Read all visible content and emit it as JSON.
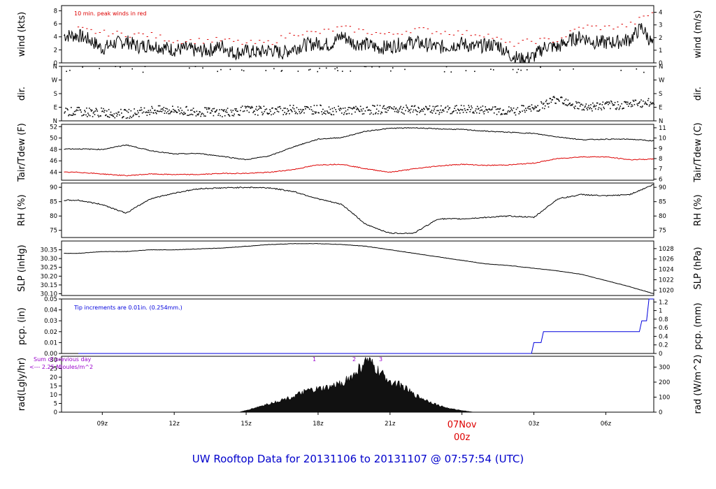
{
  "footer_title": "UW Rooftop Data for 20131106  to  20131107 @ 07:57:54  (UTC)",
  "colors": {
    "red": "#dd0000",
    "blue": "#0000dd",
    "purple": "#9900cc",
    "black": "#000000"
  },
  "chart_data": [
    {
      "type": "line",
      "panel": "wind",
      "left_label": "wind (kts)",
      "right_label": "wind (m/s)",
      "annotation": "10 min. peak winds in red",
      "ylim": [
        0,
        8.8
      ],
      "left_ticks": [
        "0",
        "2",
        "4",
        "6",
        "8"
      ],
      "right_ticks": [
        "0",
        "1",
        "2",
        "3",
        "4"
      ],
      "series": [
        {
          "name": "wind (kts)",
          "color": "#000000",
          "x": [
            8,
            8.5,
            9,
            9.5,
            10,
            10.5,
            11,
            11.5,
            12,
            12.5,
            13,
            13.5,
            14,
            14.5,
            15,
            15.5,
            16,
            16.5,
            17,
            17.5,
            18,
            18.5,
            19,
            19.5,
            20,
            20.5,
            21,
            21.5,
            22,
            22.5,
            23,
            23.5,
            24,
            24.5,
            25,
            25.5,
            26,
            26.5,
            27,
            27.5,
            28,
            28.5,
            29,
            29.5,
            30,
            30.5,
            31,
            31.5,
            32
          ],
          "values": [
            4.2,
            3.5,
            2.2,
            3.0,
            3.3,
            2.5,
            2.8,
            2.4,
            2.0,
            2.2,
            1.8,
            2.0,
            2.6,
            1.5,
            1.8,
            1.6,
            2.0,
            1.5,
            2.3,
            2.8,
            3.0,
            2.8,
            4.2,
            3.0,
            2.9,
            2.3,
            2.5,
            2.9,
            3.2,
            2.8,
            2.4,
            2.6,
            3.0,
            2.4,
            2.7,
            2.8,
            1.2,
            0.5,
            1.0,
            2.6,
            2.4,
            3.5,
            4.0,
            3.2,
            3.1,
            3.2,
            3.6,
            5.5,
            2.5
          ]
        },
        {
          "name": "10 min. peak winds",
          "color": "#dd0000",
          "x": [
            8,
            9,
            10,
            11,
            12,
            13,
            14,
            15,
            16,
            17,
            18,
            19,
            20,
            21,
            22,
            23,
            24,
            25,
            26,
            27,
            28,
            29,
            30,
            31,
            32
          ],
          "values": [
            5.2,
            4.6,
            4.4,
            4.3,
            3.4,
            3.4,
            3.5,
            3.0,
            3.1,
            4.6,
            4.6,
            5.4,
            4.8,
            4.3,
            5.2,
            4.8,
            4.6,
            4.4,
            2.8,
            3.4,
            3.5,
            5.6,
            5.4,
            5.8,
            7.8
          ]
        }
      ]
    },
    {
      "type": "scatter",
      "panel": "dir",
      "left_label": "dir.",
      "right_label": "dir.",
      "ylim": [
        0,
        360
      ],
      "left_ticks": [
        "N",
        "E",
        "S",
        "W",
        "N"
      ],
      "right_ticks": [
        "N",
        "E",
        "S",
        "W",
        "N"
      ],
      "series": [
        {
          "name": "dir",
          "x": [
            8,
            9,
            10,
            11,
            12,
            13,
            14,
            15,
            16,
            17,
            18,
            19,
            20,
            21,
            22,
            23,
            24,
            25,
            26,
            27,
            28,
            29,
            30,
            31,
            32
          ],
          "values": [
            60,
            55,
            45,
            70,
            70,
            60,
            55,
            70,
            65,
            75,
            75,
            65,
            70,
            80,
            70,
            70,
            75,
            70,
            65,
            80,
            150,
            90,
            100,
            110,
            120
          ]
        }
      ]
    },
    {
      "type": "line",
      "panel": "temp",
      "left_label": "Tair/Tdew (F)",
      "right_label": "Tair/Tdew (C)",
      "ylim": [
        42.6,
        52.4
      ],
      "left_ticks": [
        "44",
        "46",
        "48",
        "50",
        "52"
      ],
      "right_ticks": [
        "6",
        "7",
        "8",
        "9",
        "10",
        "11"
      ],
      "series": [
        {
          "name": "Tair",
          "color": "#000000",
          "x": [
            8,
            9,
            10,
            11,
            12,
            13,
            14,
            15,
            16,
            17,
            18,
            19,
            20,
            21,
            22,
            23,
            24,
            25,
            26,
            27,
            28,
            29,
            30,
            31,
            32
          ],
          "values": [
            48.1,
            48.0,
            48.8,
            47.8,
            47.2,
            47.3,
            46.8,
            46.2,
            46.9,
            48.5,
            49.8,
            50.1,
            51.2,
            51.7,
            51.8,
            51.6,
            51.5,
            51.2,
            51.0,
            50.8,
            50.2,
            49.7,
            49.8,
            49.8,
            49.5
          ]
        },
        {
          "name": "Tdew",
          "color": "#dd0000",
          "x": [
            8,
            9,
            10,
            11,
            12,
            13,
            14,
            15,
            16,
            17,
            18,
            19,
            20,
            21,
            22,
            23,
            24,
            25,
            26,
            27,
            28,
            29,
            30,
            31,
            32
          ],
          "values": [
            44.0,
            43.7,
            43.4,
            43.7,
            43.6,
            43.6,
            43.8,
            43.8,
            44.0,
            44.5,
            45.3,
            45.4,
            44.6,
            44.0,
            44.6,
            45.1,
            45.4,
            45.2,
            45.3,
            45.6,
            46.4,
            46.7,
            46.7,
            46.2,
            46.3
          ]
        }
      ]
    },
    {
      "type": "line",
      "panel": "rh",
      "left_label": "RH (%)",
      "right_label": "RH (%)",
      "ylim": [
        72.5,
        91.5
      ],
      "left_ticks": [
        "75",
        "80",
        "85",
        "90"
      ],
      "right_ticks": [
        "75",
        "80",
        "85",
        "90"
      ],
      "series": [
        {
          "name": "RH",
          "x": [
            8,
            9,
            10,
            11,
            12,
            13,
            14,
            15,
            16,
            17,
            18,
            19,
            20,
            21,
            22,
            23,
            24,
            25,
            26,
            27,
            28,
            29,
            30,
            31,
            32
          ],
          "values": [
            85.5,
            84.0,
            81.0,
            86.0,
            88.0,
            89.5,
            89.8,
            90.0,
            89.8,
            88.5,
            86.0,
            84.0,
            77.0,
            74.0,
            74.0,
            79.0,
            79.0,
            79.5,
            80.0,
            79.5,
            86.0,
            87.5,
            87.0,
            87.5,
            91.0
          ]
        }
      ]
    },
    {
      "type": "line",
      "panel": "slp",
      "left_label": "SLP (inHg)",
      "right_label": "SLP (hPa)",
      "ylim": [
        30.09,
        30.4
      ],
      "left_ticks": [
        "30.10",
        "30.15",
        "30.20",
        "30.25",
        "30.30",
        "30.35"
      ],
      "right_ticks": [
        "1020",
        "1022",
        "1024",
        "1026",
        "1028"
      ],
      "series": [
        {
          "name": "SLP",
          "x": [
            8,
            9,
            10,
            11,
            12,
            13,
            14,
            15,
            16,
            17,
            18,
            19,
            20,
            21,
            22,
            23,
            24,
            25,
            26,
            27,
            28,
            29,
            30,
            31,
            32
          ],
          "values": [
            30.33,
            30.34,
            30.34,
            30.35,
            30.35,
            30.355,
            30.36,
            30.37,
            30.38,
            30.385,
            30.385,
            30.38,
            30.37,
            30.35,
            30.33,
            30.31,
            30.29,
            30.27,
            30.26,
            30.245,
            30.23,
            30.21,
            30.175,
            30.14,
            30.1
          ]
        }
      ]
    },
    {
      "type": "line",
      "panel": "pcp",
      "left_label": "pcp. (in)",
      "right_label": "pcp. (mm)",
      "annotation": "Tip increments are 0.01in. (0.254mm.)",
      "ylim": [
        0,
        0.05
      ],
      "left_ticks": [
        "0.00",
        "0.01",
        "0.02",
        "0.03",
        "0.04",
        "0.05"
      ],
      "right_ticks": [
        "0",
        "0.2",
        "0.4",
        "0.6",
        "0.8",
        "1",
        "1.2"
      ],
      "series": [
        {
          "name": "pcp",
          "color": "#0000dd",
          "x": [
            8,
            26.9,
            27.0,
            27.3,
            27.4,
            31.4,
            31.5,
            31.7,
            31.8,
            32
          ],
          "values": [
            0,
            0,
            0.01,
            0.01,
            0.02,
            0.02,
            0.03,
            0.03,
            0.05,
            0.05
          ]
        }
      ]
    },
    {
      "type": "area",
      "panel": "rad",
      "left_label": "rad(Lgly/hr)",
      "right_label": "rad (W/m^2)",
      "left_ticks": [
        "0",
        "5",
        "10",
        "15",
        "20",
        "25",
        "30"
      ],
      "right_ticks": [
        "0",
        "100",
        "200",
        "300"
      ],
      "ylim": [
        0,
        32
      ],
      "annotation_lines": [
        "Sum of previous day",
        "<--- 2.25 MJoules/m^2"
      ],
      "markers": [
        "1",
        "2",
        "3"
      ],
      "series": [
        {
          "name": "rad",
          "x": [
            14.7,
            15,
            15.5,
            16,
            16.5,
            17,
            17.5,
            18,
            18.5,
            19,
            19.5,
            20,
            20.3,
            20.6,
            21,
            21.5,
            22,
            22.5,
            23,
            23.5,
            24,
            24.5,
            24.6
          ],
          "values": [
            0,
            1,
            3,
            5,
            7,
            9,
            12,
            13,
            14,
            17,
            21,
            30,
            26,
            22,
            18,
            15,
            10,
            7,
            4,
            2,
            1,
            0,
            0
          ]
        }
      ]
    }
  ],
  "x_axis": {
    "ticks": [
      "09z",
      "12z",
      "15z",
      "18z",
      "21z",
      "03z",
      "06z"
    ],
    "day_label": "07Nov",
    "day_sub": "00z"
  }
}
